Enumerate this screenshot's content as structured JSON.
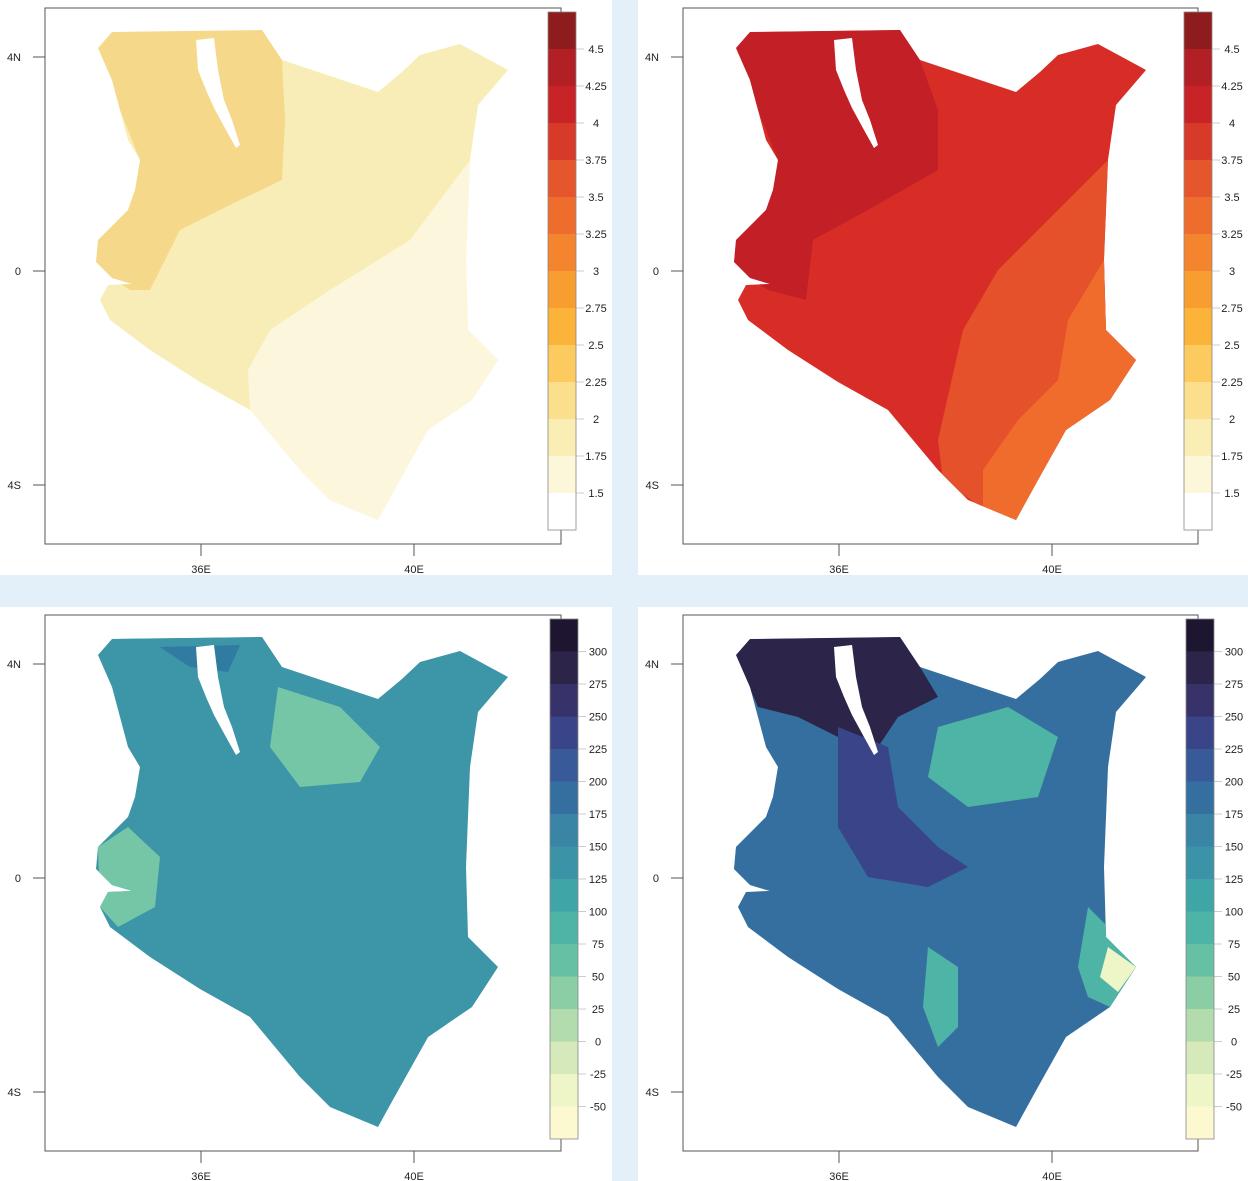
{
  "panels": [
    {
      "id": "top-left",
      "lat_labels": [
        "4N",
        "0",
        "4S"
      ],
      "lon_labels": [
        "36E",
        "40E"
      ],
      "colorbar": {
        "labels": [
          "4.5",
          "4.25",
          "4",
          "3.75",
          "3.5",
          "3.25",
          "3",
          "2.75",
          "2.5",
          "2.25",
          "2",
          "1.75",
          "1.5"
        ],
        "colors": [
          "#8e1c1e",
          "#b21f24",
          "#c82327",
          "#d83a2a",
          "#e6562d",
          "#ef6d2c",
          "#f4852e",
          "#f89d30",
          "#fbb33a",
          "#fcca5e",
          "#fbdf8c",
          "#fbeeb5",
          "#fdf7d9",
          "#ffffff"
        ]
      },
      "fill_colors": [
        "#f5d88a",
        "#f8edb6",
        "#fcf6dc"
      ]
    },
    {
      "id": "top-right",
      "lat_labels": [
        "4N",
        "0",
        "4S"
      ],
      "lon_labels": [
        "36E",
        "40E"
      ],
      "colorbar": {
        "labels": [
          "4.5",
          "4.25",
          "4",
          "3.75",
          "3.5",
          "3.25",
          "3",
          "2.75",
          "2.5",
          "2.25",
          "2",
          "1.75",
          "1.5"
        ],
        "colors": [
          "#8e1c1e",
          "#b21f24",
          "#c82327",
          "#d83a2a",
          "#e6562d",
          "#ef6d2c",
          "#f4852e",
          "#f89d30",
          "#fbb33a",
          "#fcca5e",
          "#fbdf8c",
          "#fbeeb5",
          "#fdf7d9",
          "#ffffff"
        ]
      },
      "fill_colors": [
        "#c22026",
        "#d82d27",
        "#e4512b",
        "#ef6c2c"
      ]
    },
    {
      "id": "bottom-left",
      "lat_labels": [
        "4N",
        "0",
        "4S"
      ],
      "lon_labels": [
        "36E",
        "40E"
      ],
      "colorbar": {
        "labels": [
          "300",
          "275",
          "250",
          "225",
          "200",
          "175",
          "150",
          "125",
          "100",
          "75",
          "50",
          "25",
          "0",
          "-25",
          "-50"
        ],
        "colors": [
          "#1e1631",
          "#2c2449",
          "#37326a",
          "#3a4488",
          "#385a99",
          "#356fa0",
          "#3a84a6",
          "#3b93a7",
          "#3fa5a7",
          "#4eb4a6",
          "#66c1a4",
          "#8bcea5",
          "#b3dcae",
          "#d6e9bb",
          "#eef5c7",
          "#fcf9d0"
        ]
      },
      "fill_colors": [
        "#5bbca8",
        "#3d95a8",
        "#74c6a6",
        "#2f7ba2"
      ]
    },
    {
      "id": "bottom-right",
      "lat_labels": [
        "4N",
        "0",
        "4S"
      ],
      "lon_labels": [
        "36E",
        "40E"
      ],
      "colorbar": {
        "labels": [
          "300",
          "275",
          "250",
          "225",
          "200",
          "175",
          "150",
          "125",
          "100",
          "75",
          "50",
          "25",
          "0",
          "-25",
          "-50"
        ],
        "colors": [
          "#1e1631",
          "#2c2449",
          "#37326a",
          "#3a4488",
          "#385a99",
          "#356fa0",
          "#3a84a6",
          "#3b93a7",
          "#3fa5a7",
          "#4eb4a6",
          "#66c1a4",
          "#8bcea5",
          "#b3dcae",
          "#d6e9bb",
          "#eef5c7",
          "#fcf9d0"
        ]
      },
      "fill_colors": [
        "#3b93a7",
        "#356fa0",
        "#2c2449",
        "#3a4488",
        "#4eb4a6",
        "#eef5c7"
      ]
    }
  ]
}
